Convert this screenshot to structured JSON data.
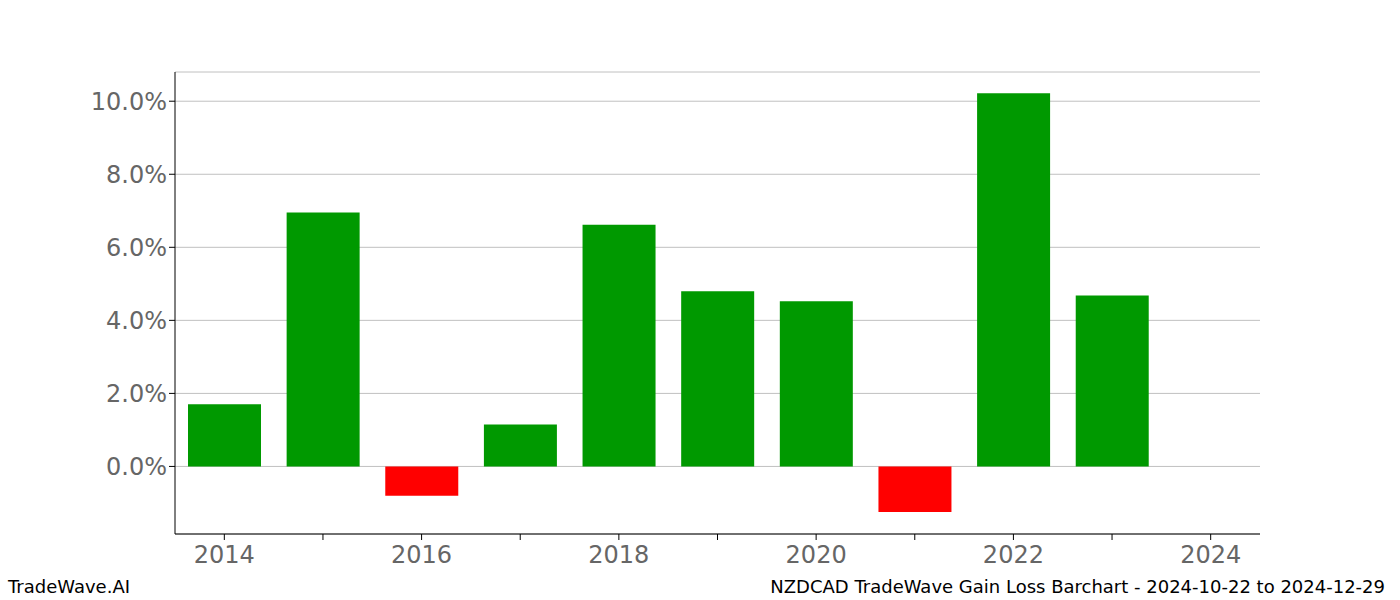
{
  "chart_data": {
    "type": "bar",
    "title": "NZDCAD TradeWave Gain Loss Barchart - 2024-10-22 to 2024-12-29",
    "annotations": [
      "TradeWave.AI"
    ],
    "categories": [
      "2014",
      null,
      "2016",
      null,
      "2018",
      null,
      "2020",
      null,
      "2022",
      null,
      "2024"
    ],
    "values": [
      1.7,
      6.95,
      -0.8,
      1.15,
      6.62,
      4.8,
      4.52,
      -1.25,
      10.22,
      4.68,
      null
    ],
    "colors": [
      "#009900",
      "#009900",
      "#ff0000",
      "#009900",
      "#009900",
      "#009900",
      "#009900",
      "#ff0000",
      "#009900",
      "#009900",
      "#009900"
    ],
    "ylim": [
      -1.85,
      10.8
    ],
    "yticks": [
      {
        "value": 0,
        "label": "0.0%"
      },
      {
        "value": 2,
        "label": "2.0%"
      },
      {
        "value": 4,
        "label": "4.0%"
      },
      {
        "value": 6,
        "label": "6.0%"
      },
      {
        "value": 8,
        "label": "8.0%"
      },
      {
        "value": 10,
        "label": "10.0%"
      }
    ],
    "grid": true
  }
}
